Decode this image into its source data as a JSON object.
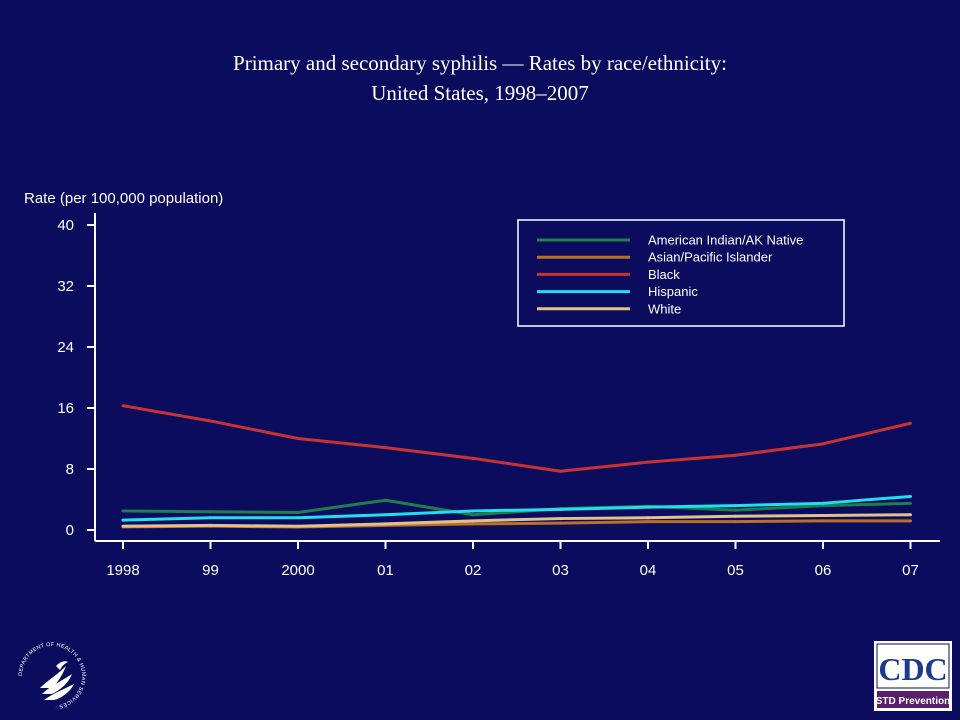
{
  "title": {
    "line1": "Primary and secondary syphilis — Rates by race/ethnicity:",
    "line2": "United States, 1998–2007"
  },
  "logos": {
    "hhs": {
      "icon": "hhs-eagle-seal-icon",
      "text": "DEPARTMENT OF HEALTH & HUMAN SERVICES · USA"
    },
    "cdc": {
      "icon": "cdc-logo-icon",
      "text": "CDC",
      "subtext": "STD Prevention"
    }
  },
  "colors": {
    "background": "#0b0c5e",
    "axis": "#ffffff"
  },
  "chart_data": {
    "type": "line",
    "title": "Primary and secondary syphilis — Rates by race/ethnicity: United States, 1998–2007",
    "ylabel": "Rate (per 100,000 population)",
    "xlabel": "",
    "categories": [
      "1998",
      "99",
      "2000",
      "01",
      "02",
      "03",
      "04",
      "05",
      "06",
      "07"
    ],
    "yticks": [
      0,
      8,
      16,
      24,
      32,
      40
    ],
    "ylim": [
      0,
      40
    ],
    "grid": false,
    "legend_position": "top-right",
    "series": [
      {
        "name": "American Indian/AK Native",
        "color": "#1e7f4e",
        "values": [
          2.5,
          2.4,
          2.3,
          3.9,
          2.0,
          2.8,
          3.1,
          2.6,
          3.2,
          3.5
        ]
      },
      {
        "name": "Asian/Pacific Islander",
        "color": "#b8702a",
        "values": [
          0.4,
          0.5,
          0.4,
          0.6,
          0.8,
          0.9,
          1.1,
          1.1,
          1.2,
          1.2
        ]
      },
      {
        "name": "Black",
        "color": "#c83232",
        "values": [
          16.3,
          14.3,
          12.0,
          10.8,
          9.4,
          7.7,
          8.9,
          9.8,
          11.3,
          14.0
        ]
      },
      {
        "name": "Hispanic",
        "color": "#22dff0",
        "values": [
          1.3,
          1.6,
          1.6,
          2.0,
          2.5,
          2.7,
          3.0,
          3.2,
          3.5,
          4.4
        ]
      },
      {
        "name": "White",
        "color": "#e2c28a",
        "values": [
          0.5,
          0.6,
          0.5,
          0.8,
          1.2,
          1.5,
          1.6,
          1.8,
          1.9,
          2.0
        ]
      }
    ]
  }
}
